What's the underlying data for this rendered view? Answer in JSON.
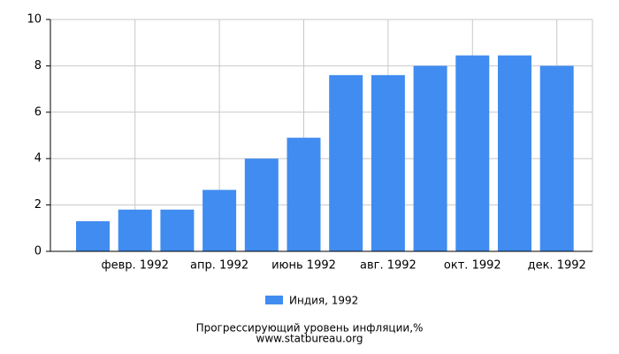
{
  "chart_data": {
    "type": "bar",
    "title": "Прогрессирующий уровень инфляции,%",
    "source": "www.statbureau.org",
    "categories": [
      null,
      "февр. 1992",
      null,
      "апр. 1992",
      null,
      "июнь 1992",
      null,
      "авг. 1992",
      null,
      "окт. 1992",
      null,
      "дек. 1992"
    ],
    "series": [
      {
        "name": "Индия, 1992",
        "color": "#418cf0",
        "values": [
          1.3,
          1.8,
          1.8,
          2.65,
          4.0,
          4.9,
          7.6,
          7.6,
          8.0,
          8.45,
          8.45,
          8.0
        ]
      }
    ],
    "ylim": [
      0,
      10
    ],
    "yticks": [
      0,
      2,
      4,
      6,
      8,
      10
    ],
    "grid": true
  }
}
